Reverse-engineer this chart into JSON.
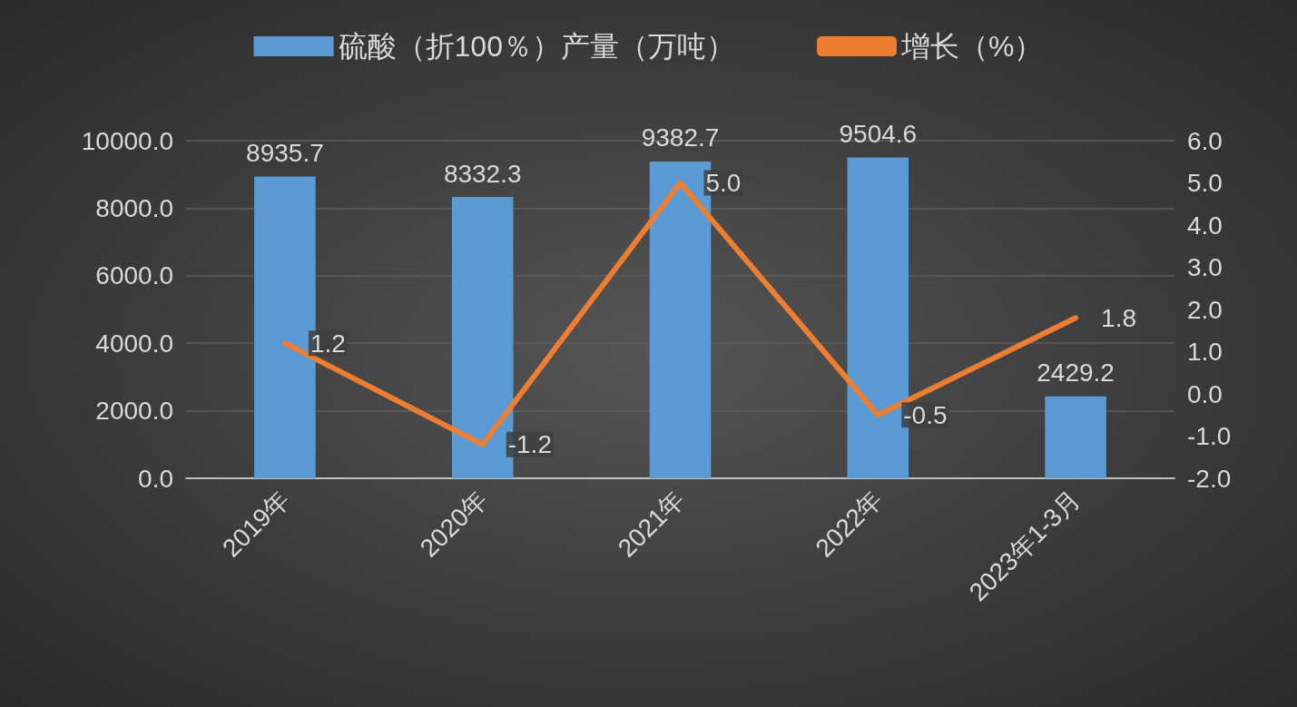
{
  "chart_data": {
    "type": "bar",
    "categories": [
      "2019年",
      "2020年",
      "2021年",
      "2022年",
      "2023年1-3月"
    ],
    "series": [
      {
        "name": "硫酸（折100％）产量（万吨）",
        "color": "#5b9bd5",
        "values": [
          8935.7,
          8332.3,
          9382.7,
          9504.6,
          2429.2
        ],
        "value_labels": [
          "8935.7",
          "8332.3",
          "9382.7",
          "9504.6",
          "2429.2"
        ]
      },
      {
        "name": "增长（%）",
        "type": "line",
        "axis": "y2",
        "color": "#ed7d31",
        "values": [
          1.2,
          -1.2,
          5.0,
          -0.5,
          1.8
        ],
        "value_labels": [
          "1.2",
          "-1.2",
          "5.0",
          "-0.5",
          "1.8"
        ]
      }
    ],
    "ylim": [
      0,
      10000
    ],
    "yticks": [
      {
        "value": 0,
        "label": "0.0"
      },
      {
        "value": 2000,
        "label": "2000.0"
      },
      {
        "value": 4000,
        "label": "4000.0"
      },
      {
        "value": 6000,
        "label": "6000.0"
      },
      {
        "value": 8000,
        "label": "8000.0"
      },
      {
        "value": 10000,
        "label": "10000.0"
      }
    ],
    "y2lim": [
      -2,
      6
    ],
    "y2ticks": [
      {
        "value": -2,
        "label": "-2.0"
      },
      {
        "value": -1,
        "label": "-1.0"
      },
      {
        "value": 0,
        "label": "0.0"
      },
      {
        "value": 1,
        "label": "1.0"
      },
      {
        "value": 2,
        "label": "2.0"
      },
      {
        "value": 3,
        "label": "3.0"
      },
      {
        "value": 4,
        "label": "4.0"
      },
      {
        "value": 5,
        "label": "5.0"
      },
      {
        "value": 6,
        "label": "6.0"
      }
    ],
    "grid": "y",
    "legend": "top",
    "marker": "none",
    "line_style": "solid"
  }
}
